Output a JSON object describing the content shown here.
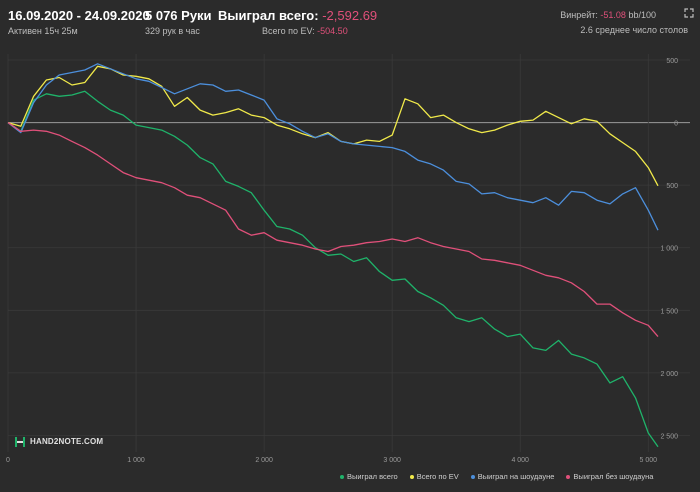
{
  "header": {
    "date_range": "16.09.2020 - 24.09.2020",
    "active": "Активен 15ч 25м",
    "hands": "5 076 Руки",
    "hands_rate": "329 рук в час",
    "won_label": "Выиграл всего:",
    "won_value": "-2,592.69",
    "ev_label": "Всего по EV:",
    "ev_value": "-504.50",
    "winrate_label": "Винрейт:",
    "winrate_value": "-51.08",
    "winrate_suffix": "bb/100",
    "tables": "2.6 среднее число столов"
  },
  "logo": {
    "text": "HAND2NOTE.COM"
  },
  "colors": {
    "won_total": "#1fb36a",
    "ev": "#f1ea4a",
    "showdown": "#4c8fdc",
    "non_showdown": "#e0507a",
    "negative": "#e0507a",
    "background": "#2b2b2b",
    "grid": "#3a3a3a",
    "zero_line": "#9a9a9a"
  },
  "chart_data": {
    "type": "line",
    "xlim": [
      0,
      5076
    ],
    "ylim": [
      -2600,
      500
    ],
    "x_ticks": [
      0,
      1000,
      2000,
      3000,
      4000,
      5000
    ],
    "x_tick_labels": [
      "0",
      "1 000",
      "2 000",
      "3 000",
      "4 000",
      "5 000"
    ],
    "y_ticks": [
      500,
      0,
      -500,
      -1000,
      -1500,
      -2000,
      -2500
    ],
    "y_tick_labels": [
      "500",
      "0",
      "500",
      "1 000",
      "1 500",
      "2 000",
      "2 500"
    ],
    "grid": true,
    "legend_position": "bottom-right",
    "series": [
      {
        "name": "Выиграл всего",
        "color_key": "won_total",
        "points": [
          [
            0,
            0
          ],
          [
            100,
            -70
          ],
          [
            200,
            180
          ],
          [
            300,
            230
          ],
          [
            400,
            210
          ],
          [
            500,
            220
          ],
          [
            600,
            250
          ],
          [
            700,
            170
          ],
          [
            800,
            100
          ],
          [
            900,
            60
          ],
          [
            1000,
            -20
          ],
          [
            1100,
            -40
          ],
          [
            1200,
            -60
          ],
          [
            1300,
            -110
          ],
          [
            1400,
            -180
          ],
          [
            1500,
            -280
          ],
          [
            1600,
            -330
          ],
          [
            1700,
            -470
          ],
          [
            1800,
            -510
          ],
          [
            1900,
            -560
          ],
          [
            2000,
            -700
          ],
          [
            2100,
            -830
          ],
          [
            2200,
            -850
          ],
          [
            2300,
            -900
          ],
          [
            2400,
            -1000
          ],
          [
            2500,
            -1060
          ],
          [
            2600,
            -1050
          ],
          [
            2700,
            -1110
          ],
          [
            2800,
            -1080
          ],
          [
            2900,
            -1190
          ],
          [
            3000,
            -1260
          ],
          [
            3100,
            -1250
          ],
          [
            3200,
            -1350
          ],
          [
            3300,
            -1400
          ],
          [
            3400,
            -1460
          ],
          [
            3500,
            -1560
          ],
          [
            3600,
            -1590
          ],
          [
            3700,
            -1560
          ],
          [
            3800,
            -1650
          ],
          [
            3900,
            -1710
          ],
          [
            4000,
            -1690
          ],
          [
            4100,
            -1800
          ],
          [
            4200,
            -1820
          ],
          [
            4300,
            -1740
          ],
          [
            4400,
            -1850
          ],
          [
            4500,
            -1880
          ],
          [
            4600,
            -1930
          ],
          [
            4700,
            -2080
          ],
          [
            4800,
            -2030
          ],
          [
            4900,
            -2200
          ],
          [
            5000,
            -2480
          ],
          [
            5076,
            -2590
          ]
        ]
      },
      {
        "name": "Всего по EV",
        "color_key": "ev",
        "points": [
          [
            0,
            0
          ],
          [
            100,
            -30
          ],
          [
            200,
            210
          ],
          [
            300,
            340
          ],
          [
            400,
            360
          ],
          [
            500,
            300
          ],
          [
            600,
            320
          ],
          [
            700,
            450
          ],
          [
            800,
            430
          ],
          [
            900,
            380
          ],
          [
            1000,
            370
          ],
          [
            1100,
            350
          ],
          [
            1200,
            290
          ],
          [
            1300,
            130
          ],
          [
            1400,
            200
          ],
          [
            1500,
            100
          ],
          [
            1600,
            60
          ],
          [
            1700,
            80
          ],
          [
            1800,
            110
          ],
          [
            1900,
            60
          ],
          [
            2000,
            40
          ],
          [
            2100,
            -20
          ],
          [
            2200,
            -50
          ],
          [
            2300,
            -90
          ],
          [
            2400,
            -120
          ],
          [
            2500,
            -80
          ],
          [
            2600,
            -150
          ],
          [
            2700,
            -170
          ],
          [
            2800,
            -140
          ],
          [
            2900,
            -150
          ],
          [
            3000,
            -100
          ],
          [
            3100,
            190
          ],
          [
            3200,
            150
          ],
          [
            3300,
            40
          ],
          [
            3400,
            60
          ],
          [
            3500,
            0
          ],
          [
            3600,
            -50
          ],
          [
            3700,
            -80
          ],
          [
            3800,
            -60
          ],
          [
            3900,
            -20
          ],
          [
            4000,
            10
          ],
          [
            4100,
            20
          ],
          [
            4200,
            90
          ],
          [
            4300,
            40
          ],
          [
            4400,
            -10
          ],
          [
            4500,
            30
          ],
          [
            4600,
            10
          ],
          [
            4700,
            -90
          ],
          [
            4800,
            -160
          ],
          [
            4900,
            -230
          ],
          [
            5000,
            -360
          ],
          [
            5076,
            -505
          ]
        ]
      },
      {
        "name": "Выиграл на шоудауне",
        "color_key": "showdown",
        "points": [
          [
            0,
            0
          ],
          [
            100,
            -80
          ],
          [
            200,
            160
          ],
          [
            300,
            300
          ],
          [
            400,
            380
          ],
          [
            500,
            400
          ],
          [
            600,
            420
          ],
          [
            700,
            470
          ],
          [
            800,
            430
          ],
          [
            900,
            390
          ],
          [
            1000,
            350
          ],
          [
            1100,
            330
          ],
          [
            1200,
            280
          ],
          [
            1300,
            230
          ],
          [
            1400,
            270
          ],
          [
            1500,
            310
          ],
          [
            1600,
            300
          ],
          [
            1700,
            250
          ],
          [
            1800,
            260
          ],
          [
            1900,
            220
          ],
          [
            2000,
            180
          ],
          [
            2100,
            30
          ],
          [
            2200,
            -10
          ],
          [
            2300,
            -70
          ],
          [
            2400,
            -120
          ],
          [
            2500,
            -90
          ],
          [
            2600,
            -150
          ],
          [
            2700,
            -170
          ],
          [
            2800,
            -180
          ],
          [
            2900,
            -190
          ],
          [
            3000,
            -200
          ],
          [
            3100,
            -230
          ],
          [
            3200,
            -300
          ],
          [
            3300,
            -330
          ],
          [
            3400,
            -380
          ],
          [
            3500,
            -470
          ],
          [
            3600,
            -490
          ],
          [
            3700,
            -570
          ],
          [
            3800,
            -560
          ],
          [
            3900,
            -600
          ],
          [
            4000,
            -620
          ],
          [
            4100,
            -640
          ],
          [
            4200,
            -600
          ],
          [
            4300,
            -660
          ],
          [
            4400,
            -550
          ],
          [
            4500,
            -560
          ],
          [
            4600,
            -620
          ],
          [
            4700,
            -650
          ],
          [
            4800,
            -570
          ],
          [
            4900,
            -520
          ],
          [
            5000,
            -700
          ],
          [
            5076,
            -860
          ]
        ]
      },
      {
        "name": "Выиграл без шоудауна",
        "color_key": "non_showdown",
        "points": [
          [
            0,
            0
          ],
          [
            100,
            -70
          ],
          [
            200,
            -60
          ],
          [
            300,
            -70
          ],
          [
            400,
            -100
          ],
          [
            500,
            -150
          ],
          [
            600,
            -200
          ],
          [
            700,
            -260
          ],
          [
            800,
            -330
          ],
          [
            900,
            -400
          ],
          [
            1000,
            -440
          ],
          [
            1100,
            -460
          ],
          [
            1200,
            -480
          ],
          [
            1300,
            -520
          ],
          [
            1400,
            -580
          ],
          [
            1500,
            -600
          ],
          [
            1600,
            -650
          ],
          [
            1700,
            -700
          ],
          [
            1800,
            -850
          ],
          [
            1900,
            -900
          ],
          [
            2000,
            -880
          ],
          [
            2100,
            -940
          ],
          [
            2200,
            -960
          ],
          [
            2300,
            -980
          ],
          [
            2400,
            -1010
          ],
          [
            2500,
            -1030
          ],
          [
            2600,
            -990
          ],
          [
            2700,
            -980
          ],
          [
            2800,
            -960
          ],
          [
            2900,
            -950
          ],
          [
            3000,
            -930
          ],
          [
            3100,
            -950
          ],
          [
            3200,
            -920
          ],
          [
            3300,
            -960
          ],
          [
            3400,
            -990
          ],
          [
            3500,
            -1010
          ],
          [
            3600,
            -1030
          ],
          [
            3700,
            -1090
          ],
          [
            3800,
            -1100
          ],
          [
            3900,
            -1120
          ],
          [
            4000,
            -1140
          ],
          [
            4100,
            -1180
          ],
          [
            4200,
            -1220
          ],
          [
            4300,
            -1240
          ],
          [
            4400,
            -1280
          ],
          [
            4500,
            -1350
          ],
          [
            4600,
            -1450
          ],
          [
            4700,
            -1450
          ],
          [
            4800,
            -1520
          ],
          [
            4900,
            -1580
          ],
          [
            5000,
            -1620
          ],
          [
            5076,
            -1710
          ]
        ]
      }
    ]
  }
}
